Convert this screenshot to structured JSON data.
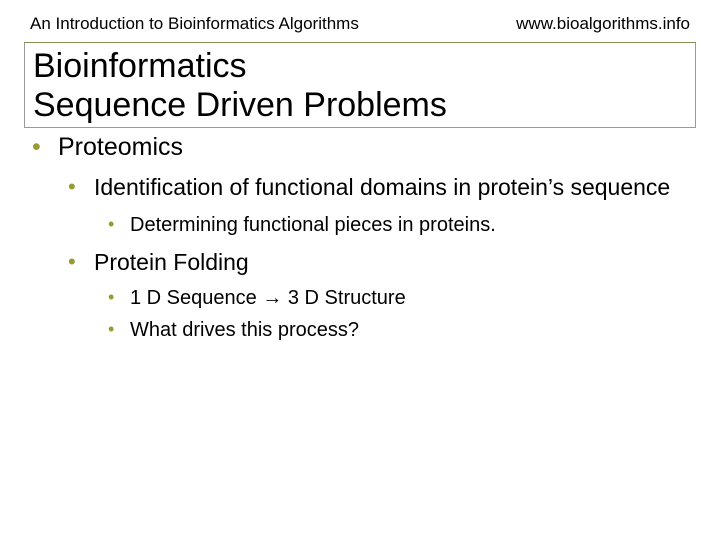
{
  "header": {
    "left": "An Introduction to Bioinformatics Algorithms",
    "right": "www.bioalgorithms.info"
  },
  "title": {
    "line1": "Bioinformatics",
    "line2": "Sequence Driven Problems"
  },
  "bullets": {
    "l1": "Proteomics",
    "l2a": "Identification of functional domains in protein’s sequence",
    "l3a": "Determining functional pieces in proteins.",
    "l2b": "Protein Folding",
    "l3b": "1 D Sequence → 3 D Structure",
    "l3c": "What drives this process?"
  },
  "colors": {
    "bullet": "#9a9a33",
    "rule": "#8a8a55",
    "background": "#ffffff",
    "text": "#000000"
  }
}
